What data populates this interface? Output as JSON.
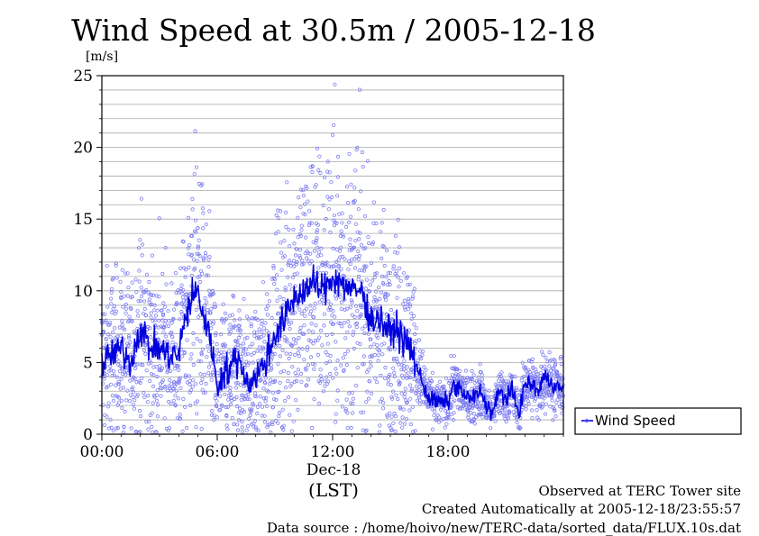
{
  "chart_data": {
    "type": "scatter",
    "title": "Wind Speed at 30.5m / 2005-12-18",
    "ylabel": "[m/s]",
    "xlabel": "(LST)",
    "date_label": "Dec-18",
    "ylim": [
      0,
      25
    ],
    "xlim_hours": [
      0,
      24
    ],
    "y_ticks": [
      0,
      5,
      10,
      15,
      20,
      25
    ],
    "y_grid_step": 1,
    "x_ticks": [
      {
        "hour": 0,
        "label": "00:00"
      },
      {
        "hour": 6,
        "label": "06:00"
      },
      {
        "hour": 12,
        "label": "12:00"
      },
      {
        "hour": 18,
        "label": "18:00"
      }
    ],
    "grid": true,
    "legend": {
      "label": "Wind Speed",
      "placement": "right"
    },
    "colors": {
      "line": "#0000dd",
      "points": "#7b7bf2"
    },
    "series": [
      {
        "name": "Wind Speed",
        "x_hours": [
          0,
          0.5,
          1,
          1.5,
          2,
          2.5,
          3,
          3.5,
          4,
          4.3,
          4.7,
          5,
          5.3,
          5.7,
          6,
          6.3,
          6.7,
          7,
          7.3,
          7.7,
          8,
          8.5,
          9,
          9.5,
          10,
          10.5,
          11,
          11.5,
          12,
          12.5,
          13,
          13.5,
          14,
          14.5,
          15,
          15.3,
          15.7,
          16,
          16.3,
          16.7,
          17,
          17.5,
          18,
          18.3,
          18.7,
          19,
          19.3,
          19.7,
          20,
          20.3,
          20.7,
          21,
          21.3,
          21.7,
          22,
          22.3,
          22.7,
          23,
          23.5,
          24
        ],
        "values": [
          5,
          5.5,
          6,
          5,
          7.5,
          6,
          6,
          5.5,
          5.5,
          8,
          9.5,
          10,
          8,
          6.5,
          3,
          4.5,
          4.5,
          5.5,
          4.5,
          3.5,
          4,
          5,
          7,
          8,
          9.5,
          10,
          10.5,
          10,
          11,
          10.5,
          10,
          10,
          8,
          8,
          7,
          7.5,
          6.5,
          6,
          5,
          3.5,
          2.5,
          2.2,
          2.2,
          3.5,
          3,
          2.5,
          2.5,
          3,
          2,
          1.5,
          3,
          2.5,
          3,
          1.5,
          3.5,
          3.5,
          3,
          4,
          3.5,
          3
        ]
      }
    ]
  },
  "footer": {
    "site": "Observed at TERC Tower site",
    "created": "Created Automatically at 2005-12-18/23:55:57",
    "source": "Data source : /home/hoivo/new/TERC-data/sorted_data/FLUX.10s.dat"
  }
}
